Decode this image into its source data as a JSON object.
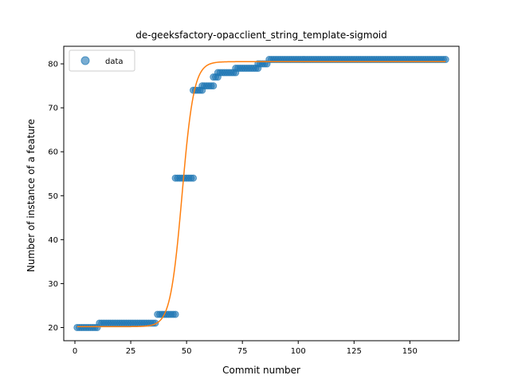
{
  "chart_data": {
    "type": "scatter",
    "title": "de-geeksfactory-opacclient_string_template-sigmoid",
    "xlabel": "Commit number",
    "ylabel": "Number of instance of a feature",
    "xlim": [
      -5,
      172
    ],
    "ylim": [
      17,
      84
    ],
    "xticks": [
      0,
      25,
      50,
      75,
      100,
      125,
      150
    ],
    "yticks": [
      20,
      30,
      40,
      50,
      60,
      70,
      80
    ],
    "grid": false,
    "legend": {
      "placement": "top-left",
      "entries": [
        "data"
      ]
    },
    "colors": {
      "data": "#1f77b4",
      "fit": "#ff7f0e"
    },
    "series": [
      {
        "name": "data",
        "kind": "scatter",
        "step_levels": [
          {
            "x_from": 1,
            "x_to": 10,
            "y": 20
          },
          {
            "x_from": 11,
            "x_to": 36,
            "y": 21
          },
          {
            "x_from": 37,
            "x_to": 45,
            "y": 23
          },
          {
            "x_from": 45,
            "x_to": 53,
            "y": 54
          },
          {
            "x_from": 53,
            "x_to": 57,
            "y": 74
          },
          {
            "x_from": 57,
            "x_to": 62,
            "y": 75
          },
          {
            "x_from": 62,
            "x_to": 64,
            "y": 77
          },
          {
            "x_from": 64,
            "x_to": 72,
            "y": 78
          },
          {
            "x_from": 72,
            "x_to": 82,
            "y": 79
          },
          {
            "x_from": 82,
            "x_to": 86,
            "y": 80
          },
          {
            "x_from": 87,
            "x_to": 166,
            "y": 81
          }
        ]
      },
      {
        "kind": "line",
        "fit": {
          "lower": 20.2,
          "upper": 80.5,
          "midpoint": 48.0,
          "rate": 0.38,
          "x_from": 1,
          "x_to": 166
        }
      }
    ]
  }
}
